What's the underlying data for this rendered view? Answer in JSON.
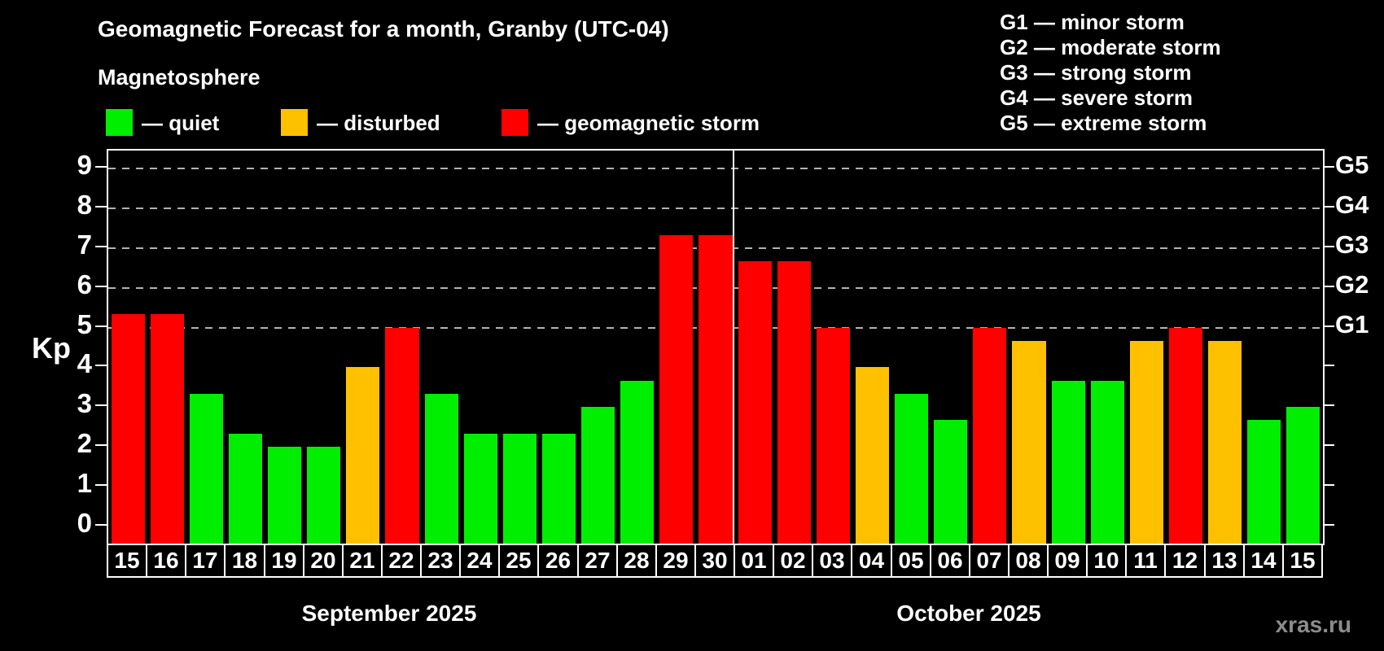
{
  "title": "Geomagnetic Forecast for a month, Granby (UTC-04)",
  "subtitle": "Magnetosphere",
  "watermark": "xras.ru",
  "colors": {
    "quiet": "#00ee00",
    "disturbed": "#ffc000",
    "storm": "#ff0000",
    "grid": "#b3b3b3",
    "background": "#000000",
    "text": "#ffffff",
    "watermark": "#8c8c8c"
  },
  "legend": {
    "items": [
      {
        "key": "quiet",
        "label": "— quiet"
      },
      {
        "key": "disturbed",
        "label": "— disturbed"
      },
      {
        "key": "storm",
        "label": "— geomagnetic storm"
      }
    ]
  },
  "storm_scale_legend": [
    "G1 — minor storm",
    "G2 — moderate storm",
    "G3 — strong storm",
    "G4 — severe storm",
    "G5 — extreme storm"
  ],
  "chart_data": {
    "type": "bar",
    "title": "Geomagnetic Forecast for a month, Granby (UTC-04)",
    "ylabel": "Kp",
    "ylim": [
      -0.45,
      9.45
    ],
    "yticks": [
      0,
      1,
      2,
      3,
      4,
      5,
      6,
      7,
      8,
      9
    ],
    "gridlines": [
      5,
      6,
      7,
      8,
      9
    ],
    "grid_style": "dashed",
    "legend_position": "top",
    "right_axis_labels": [
      {
        "kp": 5,
        "label": "G1"
      },
      {
        "kp": 6,
        "label": "G2"
      },
      {
        "kp": 7,
        "label": "G3"
      },
      {
        "kp": 8,
        "label": "G4"
      },
      {
        "kp": 9,
        "label": "G5"
      }
    ],
    "months": [
      {
        "label": "September 2025",
        "first_bar_index": 0,
        "num_days": 16
      },
      {
        "label": "October 2025",
        "first_bar_index": 16,
        "num_days": 15
      }
    ],
    "month_split_index": 16,
    "bars": [
      {
        "day": "15",
        "value": 5.33,
        "status": "storm"
      },
      {
        "day": "16",
        "value": 5.33,
        "status": "storm"
      },
      {
        "day": "17",
        "value": 3.33,
        "status": "quiet"
      },
      {
        "day": "18",
        "value": 2.33,
        "status": "quiet"
      },
      {
        "day": "19",
        "value": 2.0,
        "status": "quiet"
      },
      {
        "day": "20",
        "value": 2.0,
        "status": "quiet"
      },
      {
        "day": "21",
        "value": 4.0,
        "status": "disturbed"
      },
      {
        "day": "22",
        "value": 5.0,
        "status": "storm"
      },
      {
        "day": "23",
        "value": 3.33,
        "status": "quiet"
      },
      {
        "day": "24",
        "value": 2.33,
        "status": "quiet"
      },
      {
        "day": "25",
        "value": 2.33,
        "status": "quiet"
      },
      {
        "day": "26",
        "value": 2.33,
        "status": "quiet"
      },
      {
        "day": "27",
        "value": 3.0,
        "status": "quiet"
      },
      {
        "day": "28",
        "value": 3.67,
        "status": "quiet"
      },
      {
        "day": "29",
        "value": 7.33,
        "status": "storm"
      },
      {
        "day": "30",
        "value": 7.33,
        "status": "storm"
      },
      {
        "day": "01",
        "value": 6.67,
        "status": "storm"
      },
      {
        "day": "02",
        "value": 6.67,
        "status": "storm"
      },
      {
        "day": "03",
        "value": 5.0,
        "status": "storm"
      },
      {
        "day": "04",
        "value": 4.0,
        "status": "disturbed"
      },
      {
        "day": "05",
        "value": 3.33,
        "status": "quiet"
      },
      {
        "day": "06",
        "value": 2.67,
        "status": "quiet"
      },
      {
        "day": "07",
        "value": 5.0,
        "status": "storm"
      },
      {
        "day": "08",
        "value": 4.67,
        "status": "disturbed"
      },
      {
        "day": "09",
        "value": 3.67,
        "status": "quiet"
      },
      {
        "day": "10",
        "value": 3.67,
        "status": "quiet"
      },
      {
        "day": "11",
        "value": 4.67,
        "status": "disturbed"
      },
      {
        "day": "12",
        "value": 5.0,
        "status": "storm"
      },
      {
        "day": "13",
        "value": 4.67,
        "status": "disturbed"
      },
      {
        "day": "14",
        "value": 2.67,
        "status": "quiet"
      },
      {
        "day": "15",
        "value": 3.0,
        "status": "quiet"
      }
    ]
  }
}
